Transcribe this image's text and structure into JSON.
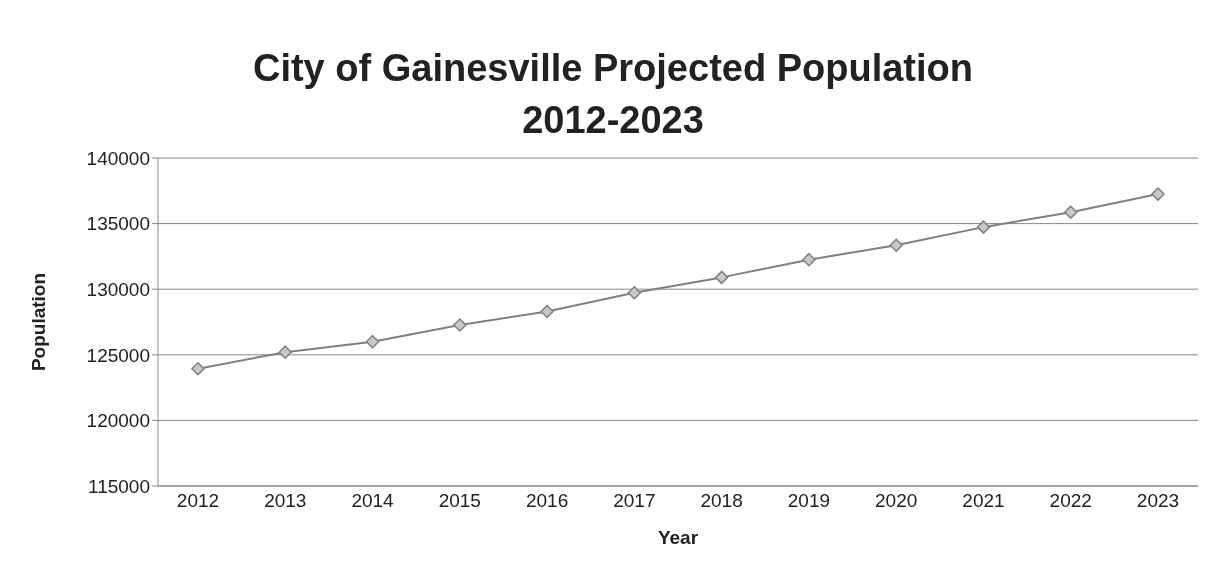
{
  "chart_data": {
    "type": "line",
    "title": "City of Gainesville Projected Population 2012-2023",
    "xlabel": "Year",
    "ylabel": "Population",
    "categories": [
      "2012",
      "2013",
      "2014",
      "2015",
      "2016",
      "2017",
      "2018",
      "2019",
      "2020",
      "2021",
      "2022",
      "2023"
    ],
    "series": [
      {
        "color": "#808080",
        "values": [
          123940,
          125200,
          126000,
          127270,
          128300,
          129730,
          130900,
          132250,
          133350,
          134730,
          135870,
          137250
        ]
      }
    ],
    "ylim": [
      115000,
      140000
    ],
    "yticks": [
      115000,
      120000,
      125000,
      130000,
      135000,
      140000
    ],
    "grid": "y",
    "marker": "diamond",
    "line_style": "solid",
    "legend": false
  }
}
